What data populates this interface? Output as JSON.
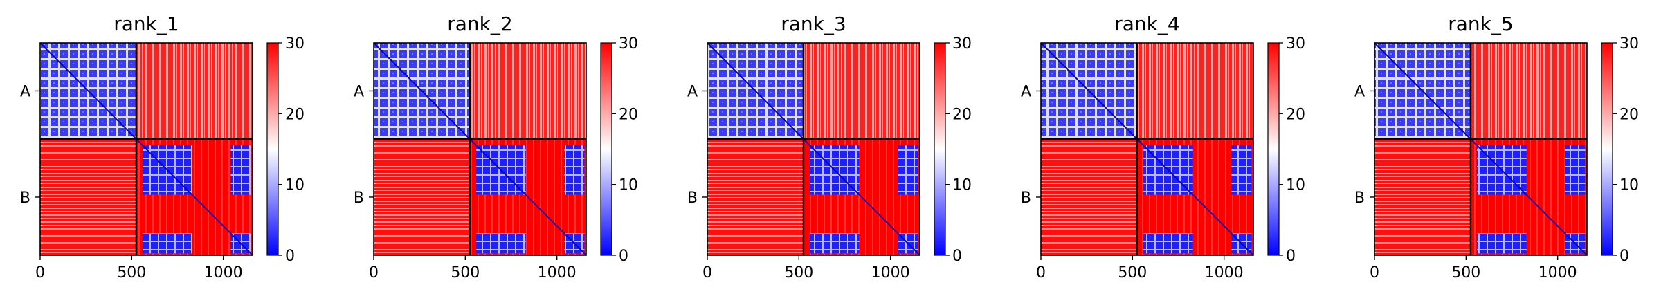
{
  "chart_data": {
    "type": "heatmap",
    "colorbar": {
      "ticks": [
        0,
        10,
        20,
        30
      ],
      "range": [
        0,
        30
      ],
      "colors": [
        "#0000ff",
        "#ffffff",
        "#ff0000"
      ]
    },
    "x_ticks": [
      0,
      500,
      1000
    ],
    "xlim": [
      0,
      1160
    ],
    "chain_boundary": 525,
    "chain_labels": [
      "A",
      "B"
    ],
    "panels": [
      {
        "title": "rank_1"
      },
      {
        "title": "rank_2"
      },
      {
        "title": "rank_3"
      },
      {
        "title": "rank_4"
      },
      {
        "title": "rank_5"
      }
    ]
  }
}
